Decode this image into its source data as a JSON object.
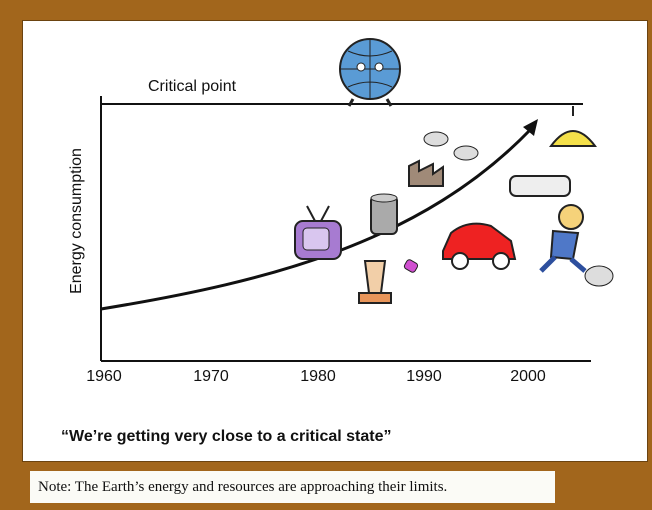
{
  "diagram": {
    "critical_label": "Critical point",
    "y_axis_label": "Energy consumption",
    "x_ticks": [
      "1960",
      "1970",
      "1980",
      "1990",
      "2000"
    ],
    "caption": "“We’re getting very close to a critical state”"
  },
  "note": "Note: The Earth’s energy and resources are approaching their limits."
}
